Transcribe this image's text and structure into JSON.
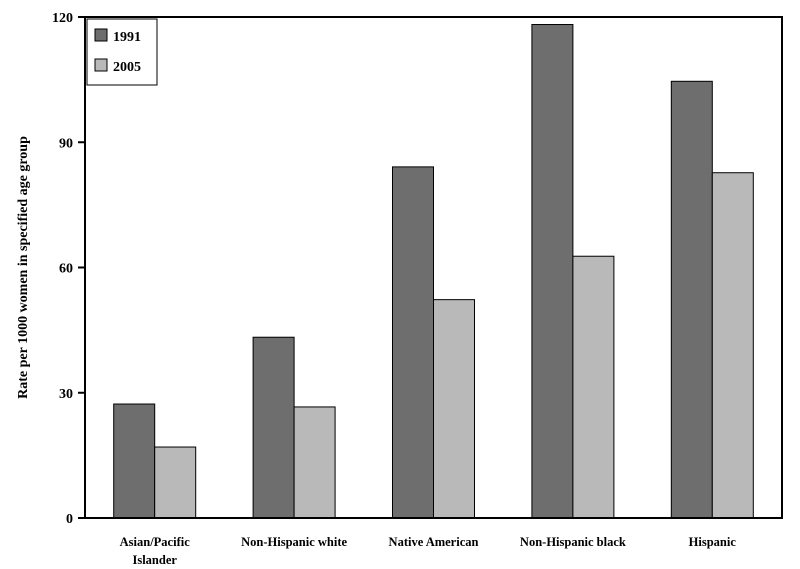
{
  "chart_data": {
    "type": "bar",
    "title": "",
    "xlabel": "",
    "ylabel": "Rate per 1000 women in specified age group",
    "ylim": [
      0,
      120
    ],
    "yticks": [
      0,
      30,
      60,
      90,
      120
    ],
    "grid": false,
    "legend_position": "top-left",
    "categories": [
      [
        "Asian/Pacific",
        "Islander"
      ],
      [
        "Non-Hispanic white"
      ],
      [
        "Native American"
      ],
      [
        "Non-Hispanic black"
      ],
      [
        "Hispanic"
      ]
    ],
    "series": [
      {
        "name": "1991",
        "color": "#6e6e6e",
        "values": [
          27.3,
          43.3,
          84.1,
          118.2,
          104.6
        ]
      },
      {
        "name": "2005",
        "color": "#b9b9b9",
        "values": [
          17.0,
          26.6,
          52.3,
          62.7,
          82.7
        ]
      }
    ]
  }
}
